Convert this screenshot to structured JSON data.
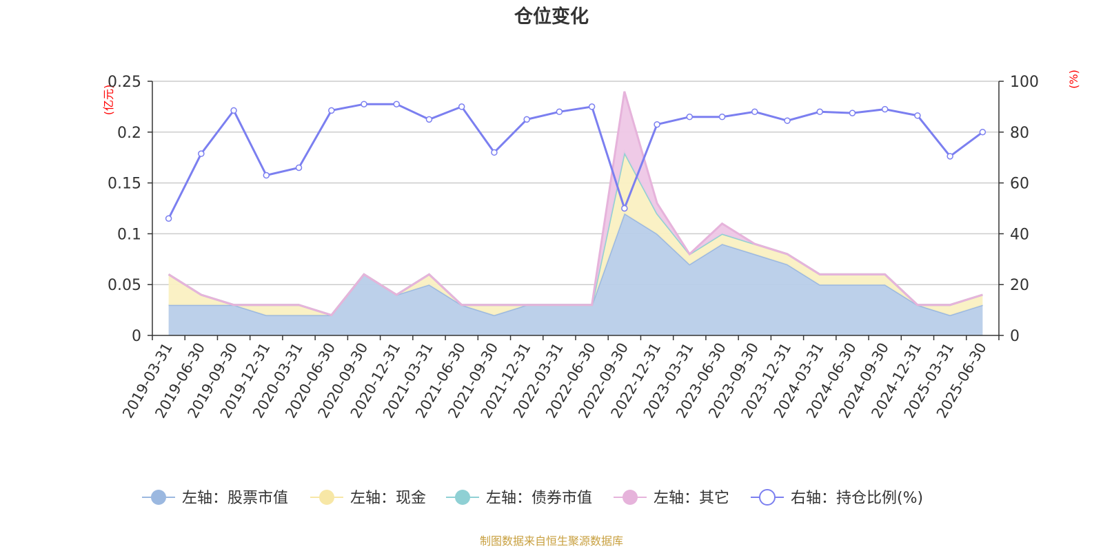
{
  "chart_data": {
    "type": "area",
    "title": "仓位变化",
    "left_unit": "(亿元)",
    "right_unit": "(%)",
    "footer": "制图数据来自恒生聚源数据库",
    "categories": [
      "2019-03-31",
      "2019-06-30",
      "2019-09-30",
      "2019-12-31",
      "2020-03-31",
      "2020-06-30",
      "2020-09-30",
      "2020-12-31",
      "2021-03-31",
      "2021-06-30",
      "2021-09-30",
      "2021-12-31",
      "2022-03-31",
      "2022-06-30",
      "2022-09-30",
      "2022-12-31",
      "2023-03-31",
      "2023-06-30",
      "2023-09-30",
      "2023-12-31",
      "2024-03-31",
      "2024-06-30",
      "2024-09-30",
      "2024-12-31",
      "2025-03-31",
      "2025-06-30"
    ],
    "y_left": {
      "min": 0,
      "max": 0.25,
      "ticks": [
        "0",
        "0.05",
        "0.1",
        "0.15",
        "0.2",
        "0.25"
      ]
    },
    "y_right": {
      "min": 0,
      "max": 100,
      "ticks": [
        "0",
        "20",
        "40",
        "60",
        "80",
        "100"
      ]
    },
    "grid": true,
    "legend_position": "bottom",
    "series": [
      {
        "name": "左轴：股票市值",
        "axis": "left",
        "color": "#9bb8e0",
        "fill": "#b8cde9",
        "values": [
          0.03,
          0.03,
          0.03,
          0.02,
          0.02,
          0.02,
          0.06,
          0.04,
          0.05,
          0.03,
          0.02,
          0.03,
          0.03,
          0.03,
          0.12,
          0.1,
          0.07,
          0.09,
          0.08,
          0.07,
          0.05,
          0.05,
          0.05,
          0.03,
          0.02,
          0.03
        ]
      },
      {
        "name": "左轴：现金",
        "axis": "left",
        "color": "#f7e7a6",
        "fill": "#faf0c2",
        "values": [
          0.03,
          0.01,
          0.0,
          0.01,
          0.01,
          0.0,
          0.0,
          0.0,
          0.01,
          0.0,
          0.01,
          0.0,
          0.0,
          0.0,
          0.06,
          0.02,
          0.01,
          0.01,
          0.01,
          0.01,
          0.01,
          0.01,
          0.01,
          0.0,
          0.01,
          0.01
        ]
      },
      {
        "name": "左轴：债券市值",
        "axis": "left",
        "color": "#8fd0d4",
        "fill": "#a8dade",
        "values": [
          0,
          0,
          0,
          0,
          0,
          0,
          0,
          0,
          0,
          0,
          0,
          0,
          0,
          0,
          0,
          0,
          0,
          0,
          0,
          0,
          0,
          0,
          0,
          0,
          0,
          0
        ]
      },
      {
        "name": "左轴：其它",
        "axis": "left",
        "color": "#e6b3db",
        "fill": "#eec7e6",
        "values": [
          0.0,
          0.0,
          0.0,
          0.0,
          0.0,
          0.0,
          0.0,
          0.0,
          0.0,
          0.0,
          0.0,
          0.0,
          0.0,
          0.0,
          0.06,
          0.01,
          0.0,
          0.01,
          0.0,
          0.0,
          0.0,
          0.0,
          0.0,
          0.0,
          0.0,
          0.0
        ]
      },
      {
        "name": "右轴：持仓比例(%)",
        "axis": "right",
        "color": "#7b7ff0",
        "values": [
          46,
          71.5,
          88.5,
          63,
          66,
          88.5,
          91,
          91,
          85,
          90,
          72,
          85,
          88,
          90,
          50,
          83,
          86,
          86,
          88,
          84.5,
          88,
          87.5,
          89,
          86.5,
          70.5,
          80
        ]
      }
    ]
  }
}
